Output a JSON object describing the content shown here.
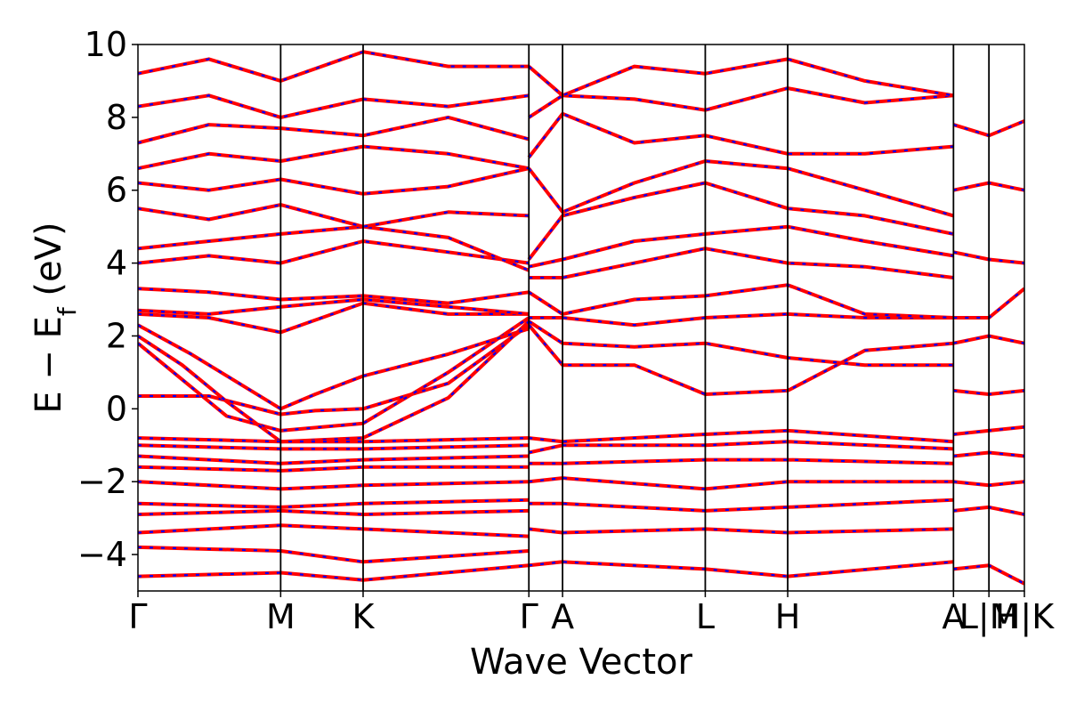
{
  "chart_data": {
    "type": "line",
    "title": "",
    "xlabel": "Wave Vector",
    "ylabel_main": "E − E",
    "ylabel_sub": "f",
    "ylabel_unit": " (eV)",
    "ylim": [
      -5,
      10
    ],
    "yticks": [
      -4,
      -2,
      0,
      2,
      4,
      6,
      8,
      10
    ],
    "ytick_labels": [
      "−4",
      "−2",
      "0",
      "2",
      "4",
      "6",
      "8",
      "10"
    ],
    "xlim": [
      0,
      1
    ],
    "high_symmetry_points": [
      {
        "label": "Γ",
        "x": 0.0
      },
      {
        "label": "M",
        "x": 0.161
      },
      {
        "label": "K",
        "x": 0.254
      },
      {
        "label": "Γ",
        "x": 0.441
      },
      {
        "label": "A",
        "x": 0.479
      },
      {
        "label": "L",
        "x": 0.64
      },
      {
        "label": "H",
        "x": 0.733
      },
      {
        "label": "A",
        "x": 0.92
      },
      {
        "label": "L|M",
        "x": 0.96
      },
      {
        "label": "H|K",
        "x": 1.0
      }
    ],
    "grid": false,
    "legend": false,
    "colors": {
      "main": "#ff0000",
      "overlay": "#0000ff"
    },
    "series": [
      {
        "x": [
          0,
          0.08,
          0.161,
          0.2,
          0.254,
          0.35,
          0.441
        ],
        "y": [
          0.35,
          0.35,
          -0.15,
          -0.05,
          0.0,
          0.7,
          2.3
        ]
      },
      {
        "x": [
          0,
          0.05,
          0.1,
          0.161,
          0.254,
          0.35,
          0.441
        ],
        "y": [
          1.8,
          0.8,
          -0.2,
          -0.6,
          -0.4,
          1.0,
          2.5
        ]
      },
      {
        "x": [
          0,
          0.05,
          0.1,
          0.161,
          0.254,
          0.35,
          0.441
        ],
        "y": [
          2.0,
          1.2,
          0.2,
          -0.9,
          -0.8,
          0.3,
          2.4
        ]
      },
      {
        "x": [
          0,
          0.06,
          0.161,
          0.2,
          0.254,
          0.35,
          0.441
        ],
        "y": [
          2.3,
          1.5,
          0.0,
          0.4,
          0.9,
          1.5,
          2.2
        ]
      },
      {
        "x": [
          0,
          0.08,
          0.161,
          0.254,
          0.35,
          0.441
        ],
        "y": [
          2.6,
          2.5,
          2.1,
          2.9,
          2.6,
          2.6
        ]
      },
      {
        "x": [
          0,
          0.08,
          0.161,
          0.254,
          0.35,
          0.441
        ],
        "y": [
          2.7,
          2.6,
          2.8,
          3.0,
          2.8,
          2.6
        ]
      },
      {
        "x": [
          0,
          0.08,
          0.161,
          0.254,
          0.35,
          0.441
        ],
        "y": [
          3.3,
          3.2,
          3.0,
          3.1,
          2.9,
          3.2
        ]
      },
      {
        "x": [
          0,
          0.08,
          0.161,
          0.254,
          0.35,
          0.441
        ],
        "y": [
          4.0,
          4.2,
          4.0,
          4.6,
          4.3,
          4.0
        ]
      },
      {
        "x": [
          0,
          0.08,
          0.161,
          0.254,
          0.35,
          0.441
        ],
        "y": [
          4.4,
          4.6,
          4.8,
          5.0,
          4.7,
          3.8
        ]
      },
      {
        "x": [
          0,
          0.08,
          0.161,
          0.254,
          0.35,
          0.441
        ],
        "y": [
          5.5,
          5.2,
          5.6,
          5.0,
          5.4,
          5.3
        ]
      },
      {
        "x": [
          0,
          0.08,
          0.161,
          0.254,
          0.35,
          0.441
        ],
        "y": [
          6.2,
          6.0,
          6.3,
          5.9,
          6.1,
          6.6
        ]
      },
      {
        "x": [
          0,
          0.08,
          0.161,
          0.254,
          0.35,
          0.441
        ],
        "y": [
          6.6,
          7.0,
          6.8,
          7.2,
          7.0,
          6.6
        ]
      },
      {
        "x": [
          0,
          0.08,
          0.161,
          0.254,
          0.35,
          0.441
        ],
        "y": [
          7.3,
          7.8,
          7.7,
          7.5,
          8.0,
          7.4
        ]
      },
      {
        "x": [
          0,
          0.08,
          0.161,
          0.254,
          0.35,
          0.441
        ],
        "y": [
          8.3,
          8.6,
          8.0,
          8.5,
          8.3,
          8.6
        ]
      },
      {
        "x": [
          0,
          0.08,
          0.161,
          0.254,
          0.35,
          0.441
        ],
        "y": [
          9.2,
          9.6,
          9.0,
          9.8,
          9.4,
          9.4
        ]
      },
      {
        "x": [
          0,
          0.161,
          0.254,
          0.441
        ],
        "y": [
          -0.8,
          -0.9,
          -0.9,
          -0.8
        ]
      },
      {
        "x": [
          0,
          0.161,
          0.254,
          0.441
        ],
        "y": [
          -1.0,
          -1.1,
          -1.1,
          -1.0
        ]
      },
      {
        "x": [
          0,
          0.161,
          0.254,
          0.441
        ],
        "y": [
          -1.3,
          -1.5,
          -1.4,
          -1.3
        ]
      },
      {
        "x": [
          0,
          0.161,
          0.254,
          0.441
        ],
        "y": [
          -1.6,
          -1.7,
          -1.6,
          -1.6
        ]
      },
      {
        "x": [
          0,
          0.161,
          0.254,
          0.441
        ],
        "y": [
          -2.0,
          -2.2,
          -2.1,
          -2.0
        ]
      },
      {
        "x": [
          0,
          0.161,
          0.254,
          0.441
        ],
        "y": [
          -2.6,
          -2.7,
          -2.6,
          -2.5
        ]
      },
      {
        "x": [
          0,
          0.161,
          0.254,
          0.441
        ],
        "y": [
          -2.9,
          -2.8,
          -2.9,
          -2.8
        ]
      },
      {
        "x": [
          0,
          0.161,
          0.254,
          0.441
        ],
        "y": [
          -3.4,
          -3.2,
          -3.3,
          -3.5
        ]
      },
      {
        "x": [
          0,
          0.161,
          0.254,
          0.441
        ],
        "y": [
          -3.8,
          -3.9,
          -4.2,
          -3.9
        ]
      },
      {
        "x": [
          0,
          0.161,
          0.254,
          0.441
        ],
        "y": [
          -4.6,
          -4.5,
          -4.7,
          -4.3
        ]
      },
      {
        "x": [
          0.441,
          0.479,
          0.56,
          0.64,
          0.733,
          0.82,
          0.92
        ],
        "y": [
          2.5,
          2.5,
          2.3,
          2.5,
          2.6,
          2.5,
          2.5
        ]
      },
      {
        "x": [
          0.441,
          0.479,
          0.56,
          0.64,
          0.733,
          0.82,
          0.92
        ],
        "y": [
          2.4,
          1.8,
          1.7,
          1.8,
          1.4,
          1.2,
          1.2
        ]
      },
      {
        "x": [
          0.441,
          0.479,
          0.56,
          0.64,
          0.733,
          0.82,
          0.92
        ],
        "y": [
          2.3,
          1.2,
          1.2,
          0.4,
          0.5,
          1.6,
          1.8
        ]
      },
      {
        "x": [
          0.441,
          0.479,
          0.56,
          0.64,
          0.733,
          0.82,
          0.92
        ],
        "y": [
          3.2,
          2.6,
          3.0,
          3.1,
          3.4,
          2.6,
          2.5
        ]
      },
      {
        "x": [
          0.441,
          0.479,
          0.56,
          0.64,
          0.733,
          0.82,
          0.92
        ],
        "y": [
          3.6,
          3.6,
          4.0,
          4.4,
          4.0,
          3.9,
          3.6
        ]
      },
      {
        "x": [
          0.441,
          0.479,
          0.56,
          0.64,
          0.733,
          0.82,
          0.92
        ],
        "y": [
          3.9,
          4.1,
          4.6,
          4.8,
          5.0,
          4.6,
          4.2
        ]
      },
      {
        "x": [
          0.441,
          0.479,
          0.56,
          0.64,
          0.733,
          0.82,
          0.92
        ],
        "y": [
          4.1,
          5.3,
          5.8,
          6.2,
          5.5,
          5.3,
          4.8
        ]
      },
      {
        "x": [
          0.441,
          0.479,
          0.56,
          0.64,
          0.733,
          0.82,
          0.92
        ],
        "y": [
          6.6,
          5.4,
          6.2,
          6.8,
          6.6,
          6.0,
          5.3
        ]
      },
      {
        "x": [
          0.441,
          0.479,
          0.56,
          0.64,
          0.733,
          0.82,
          0.92
        ],
        "y": [
          6.9,
          8.1,
          7.3,
          7.5,
          7.0,
          7.0,
          7.2
        ]
      },
      {
        "x": [
          0.441,
          0.479,
          0.56,
          0.64,
          0.733,
          0.82,
          0.92
        ],
        "y": [
          8.0,
          8.6,
          8.5,
          8.2,
          8.8,
          8.4,
          8.6
        ]
      },
      {
        "x": [
          0.441,
          0.479,
          0.56,
          0.64,
          0.733,
          0.82,
          0.92
        ],
        "y": [
          9.4,
          8.6,
          9.4,
          9.2,
          9.6,
          9.0,
          8.6
        ]
      },
      {
        "x": [
          0.441,
          0.479,
          0.64,
          0.733,
          0.92
        ],
        "y": [
          -0.8,
          -0.9,
          -0.7,
          -0.6,
          -0.9
        ]
      },
      {
        "x": [
          0.441,
          0.479,
          0.64,
          0.733,
          0.92
        ],
        "y": [
          -1.2,
          -1.0,
          -1.0,
          -0.9,
          -1.1
        ]
      },
      {
        "x": [
          0.441,
          0.479,
          0.64,
          0.733,
          0.92
        ],
        "y": [
          -1.5,
          -1.5,
          -1.4,
          -1.4,
          -1.5
        ]
      },
      {
        "x": [
          0.441,
          0.479,
          0.64,
          0.733,
          0.92
        ],
        "y": [
          -2.0,
          -1.9,
          -2.2,
          -2.0,
          -2.0
        ]
      },
      {
        "x": [
          0.441,
          0.479,
          0.64,
          0.733,
          0.92
        ],
        "y": [
          -2.6,
          -2.6,
          -2.8,
          -2.7,
          -2.5
        ]
      },
      {
        "x": [
          0.441,
          0.479,
          0.64,
          0.733,
          0.92
        ],
        "y": [
          -3.3,
          -3.4,
          -3.3,
          -3.4,
          -3.3
        ]
      },
      {
        "x": [
          0.441,
          0.479,
          0.64,
          0.733,
          0.92
        ],
        "y": [
          -4.3,
          -4.2,
          -4.4,
          -4.6,
          -4.2
        ]
      },
      {
        "x": [
          0.92,
          0.96,
          1.0
        ],
        "y": [
          0.5,
          0.4,
          0.5
        ]
      },
      {
        "x": [
          0.92,
          0.96,
          1.0
        ],
        "y": [
          1.8,
          2.0,
          1.8
        ]
      },
      {
        "x": [
          0.92,
          0.96,
          1.0
        ],
        "y": [
          2.5,
          2.5,
          3.3
        ]
      },
      {
        "x": [
          0.92,
          0.96,
          1.0
        ],
        "y": [
          4.3,
          4.1,
          4.0
        ]
      },
      {
        "x": [
          0.92,
          0.96,
          1.0
        ],
        "y": [
          6.0,
          6.2,
          6.0
        ]
      },
      {
        "x": [
          0.92,
          0.96,
          1.0
        ],
        "y": [
          7.8,
          7.5,
          7.9
        ]
      },
      {
        "x": [
          0.92,
          0.96,
          1.0
        ],
        "y": [
          -0.7,
          -0.6,
          -0.5
        ]
      },
      {
        "x": [
          0.92,
          0.96,
          1.0
        ],
        "y": [
          -1.3,
          -1.2,
          -1.3
        ]
      },
      {
        "x": [
          0.92,
          0.96,
          1.0
        ],
        "y": [
          -2.0,
          -2.1,
          -2.0
        ]
      },
      {
        "x": [
          0.92,
          0.96,
          1.0
        ],
        "y": [
          -2.8,
          -2.7,
          -2.9
        ]
      },
      {
        "x": [
          0.92,
          0.96,
          1.0
        ],
        "y": [
          -4.4,
          -4.3,
          -4.8
        ]
      }
    ]
  }
}
